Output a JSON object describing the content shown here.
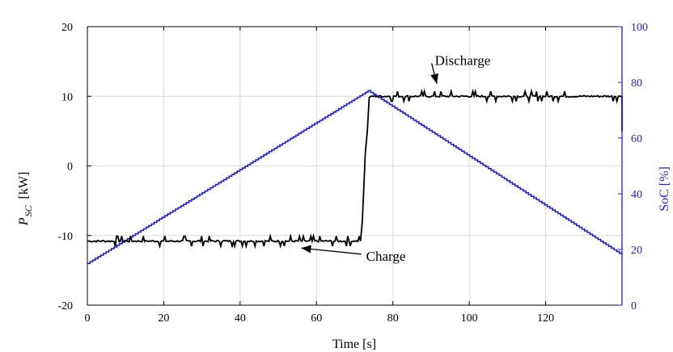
{
  "chart_data": {
    "type": "line",
    "title": "",
    "xlabel": "Time [s]",
    "ylabel_left_main": "P",
    "ylabel_left_sub": "SC",
    "ylabel_left_unit": "[kW]",
    "ylabel_right": "SoC [%]",
    "xlim": [
      0,
      140
    ],
    "ylim_left": [
      -20,
      20
    ],
    "ylim_right": [
      0,
      100
    ],
    "x_ticks": [
      0,
      20,
      40,
      60,
      80,
      100,
      120
    ],
    "y_left_ticks": [
      -20,
      -10,
      0,
      10,
      20
    ],
    "y_right_ticks": [
      0,
      20,
      40,
      60,
      80,
      100
    ],
    "grid": true,
    "colors": {
      "power": "#000000",
      "soc": "#1f1fe0",
      "right_axis": "#1f1fe0"
    },
    "series": [
      {
        "axis": "left",
        "x": [
          0,
          71.5,
          72,
          72.8,
          73.3,
          73.8,
          74.2,
          140,
          140
        ],
        "values": [
          -10.8,
          -10.8,
          -8,
          2,
          5,
          9.8,
          10,
          10,
          5
        ]
      },
      {
        "axis": "right",
        "x": [
          0,
          73.5,
          140
        ],
        "values": [
          15,
          77,
          18
        ]
      }
    ],
    "annotations": [
      {
        "text": "Discharge",
        "x": 91,
        "y": 14.5,
        "arrow_to": [
          91.5,
          11.8
        ]
      },
      {
        "text": "Charge",
        "x": 73,
        "y": -13.6,
        "arrow_to": [
          56,
          -11.8
        ]
      }
    ]
  }
}
